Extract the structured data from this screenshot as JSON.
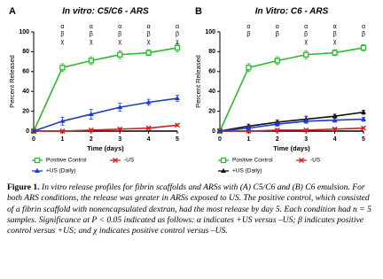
{
  "chart_data": [
    {
      "type": "line",
      "panel_label": "A",
      "title": "In vitro: C5/C6 - ARS",
      "xlabel": "Time (days)",
      "ylabel": "Percent Released",
      "x": [
        0,
        1,
        2,
        3,
        4,
        5
      ],
      "xlim": [
        0,
        5
      ],
      "xticks": [
        0,
        1,
        2,
        3,
        4,
        5
      ],
      "ylim": [
        0,
        100
      ],
      "yticks": [
        0,
        20,
        40,
        60,
        80,
        100
      ],
      "series": [
        {
          "name": "Positive Control",
          "color": "#2eb82e",
          "marker": "square",
          "values": [
            0,
            64,
            71,
            77,
            79,
            84
          ],
          "errors": [
            0,
            4,
            4,
            4,
            3,
            4
          ]
        },
        {
          "name": "-US",
          "color": "#d42020",
          "marker": "x",
          "values": [
            0,
            0,
            1,
            2,
            3,
            6
          ],
          "errors": [
            0,
            1,
            1,
            1,
            1,
            1
          ]
        },
        {
          "name": "+US (Daily)",
          "color": "#1e3ccf",
          "marker": "triangle",
          "values": [
            0,
            10,
            17,
            24,
            29,
            33
          ],
          "errors": [
            0,
            4,
            5,
            4,
            3,
            3
          ]
        }
      ],
      "annotations": [
        {
          "x": 1,
          "text": [
            "α",
            "β",
            "χ"
          ]
        },
        {
          "x": 2,
          "text": [
            "α",
            "β",
            "χ"
          ]
        },
        {
          "x": 3,
          "text": [
            "α",
            "β",
            "χ"
          ]
        },
        {
          "x": 4,
          "text": [
            "α",
            "β",
            "χ"
          ]
        },
        {
          "x": 5,
          "text": [
            "α",
            "β",
            "χ"
          ]
        }
      ]
    },
    {
      "type": "line",
      "panel_label": "B",
      "title": "In Vitro: C6 - ARS",
      "xlabel": "Time (days)",
      "ylabel": "Percent Released",
      "x": [
        0,
        1,
        2,
        3,
        4,
        5
      ],
      "xlim": [
        0,
        5
      ],
      "xticks": [
        0,
        1,
        2,
        3,
        4,
        5
      ],
      "ylim": [
        0,
        100
      ],
      "yticks": [
        0,
        20,
        40,
        60,
        80,
        100
      ],
      "series": [
        {
          "name": "Positive Control",
          "color": "#2eb82e",
          "marker": "square",
          "values": [
            0,
            64,
            71,
            77,
            79,
            84
          ],
          "errors": [
            0,
            4,
            4,
            4,
            3,
            3
          ]
        },
        {
          "name": "-US",
          "color": "#d42020",
          "marker": "x",
          "values": [
            0,
            0,
            1,
            1,
            2,
            3
          ],
          "errors": [
            0,
            1,
            1,
            1,
            1,
            1
          ]
        },
        {
          "name": "+US (Daily)",
          "color": "#111111",
          "marker": "triangle",
          "values": [
            0,
            5,
            9,
            12,
            15,
            19
          ],
          "errors": [
            0,
            2,
            2,
            3,
            2,
            2
          ]
        },
        {
          "color": "#1e3ccf",
          "marker": "triangle",
          "values": [
            0,
            3,
            7,
            10,
            11,
            12
          ],
          "errors": [
            0,
            2,
            2,
            2,
            2,
            2
          ]
        }
      ],
      "annotations": [
        {
          "x": 1,
          "text": [
            "α",
            "β"
          ]
        },
        {
          "x": 2,
          "text": [
            "α",
            "β"
          ]
        },
        {
          "x": 3,
          "text": [
            "α",
            "β",
            "χ"
          ]
        },
        {
          "x": 4,
          "text": [
            "α",
            "β",
            "χ"
          ]
        },
        {
          "x": 5,
          "text": [
            "α",
            "β"
          ]
        }
      ]
    }
  ],
  "caption": {
    "label": "Figure 1.",
    "text": "In vitro release profiles for fibrin scaffolds and ARSs with (A) C5/C6 and (B) C6 emulsion. For both ARS conditions, the release was greater in ARSs exposed to US. The positive control, which consisted of a fibrin scaffold with nonencapsulated dextran, had the most release by day 5. Each condition had n = 5 samples. Significance at P < 0.05 indicated as follows: α indicates +US versus –US; β indicates positive control versus +US; and χ indicates positive control versus –US."
  }
}
